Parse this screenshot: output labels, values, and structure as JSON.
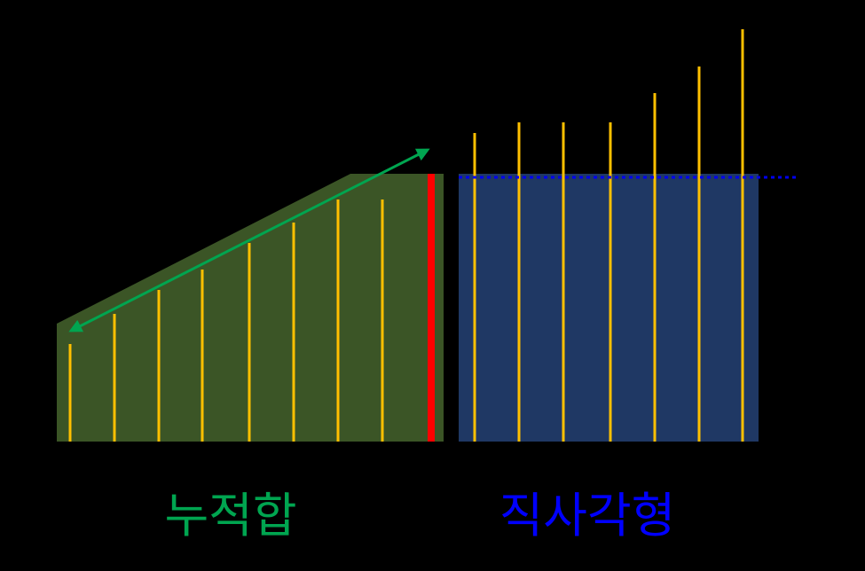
{
  "labels": {
    "cumulative": "누적합",
    "rectangle": "직사각형"
  }
}
